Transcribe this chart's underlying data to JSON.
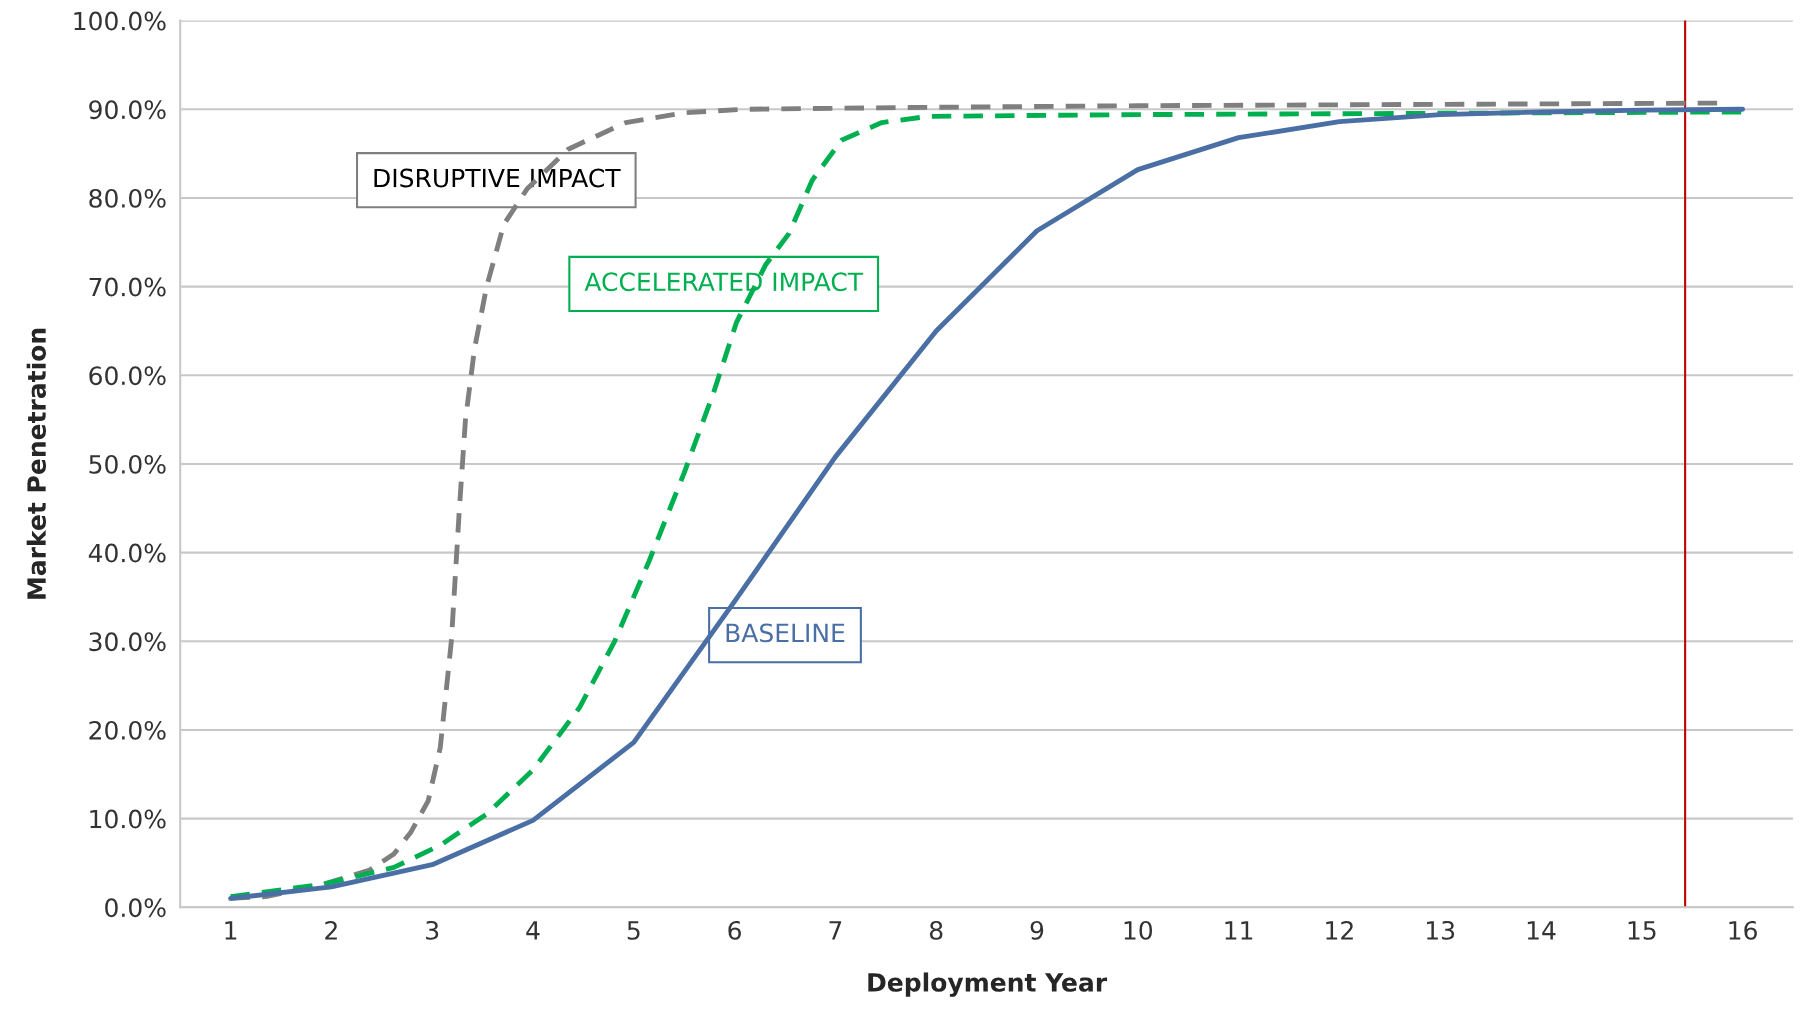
{
  "chart_data": {
    "type": "line",
    "xlabel": "Deployment Year",
    "ylabel": "Market Penetration",
    "xlim": [
      0.5,
      16.5
    ],
    "xticks": [
      1,
      2,
      3,
      4,
      5,
      6,
      7,
      8,
      9,
      10,
      11,
      12,
      13,
      14,
      15,
      16
    ],
    "ylim": [
      0,
      100
    ],
    "yticks": [
      {
        "value": 0,
        "label": "0.0%"
      },
      {
        "value": 10,
        "label": "10.0%"
      },
      {
        "value": 20,
        "label": "20.0%"
      },
      {
        "value": 30,
        "label": "30.0%"
      },
      {
        "value": 40,
        "label": "40.0%"
      },
      {
        "value": 50,
        "label": "50.0%"
      },
      {
        "value": 60,
        "label": "60.0%"
      },
      {
        "value": 70,
        "label": "70.0%"
      },
      {
        "value": 80,
        "label": "80.0%"
      },
      {
        "value": 90,
        "label": "90.0%"
      },
      {
        "value": 100,
        "label": "100.0%"
      }
    ],
    "grid": "y",
    "legend": false,
    "marker": "none",
    "series": [
      {
        "name": "DISRUPTIVE IMPACT",
        "color": "#7f7f7f",
        "line_style": "dashed",
        "x": [
          1.0,
          1.35,
          1.92,
          2.38,
          2.62,
          2.79,
          2.96,
          3.08,
          3.19,
          3.27,
          3.33,
          3.42,
          3.54,
          3.71,
          3.94,
          4.35,
          4.92,
          5.5,
          6.08,
          7.69,
          10.0,
          15.8
        ],
        "values": [
          1.0,
          1.2,
          2.6,
          4.2,
          6,
          8.5,
          12,
          18,
          30,
          45,
          55,
          63,
          70,
          77,
          81,
          85.5,
          88.5,
          89.6,
          90.0,
          90.2,
          90.4,
          90.7
        ]
      },
      {
        "name": "ACCELERATED IMPACT",
        "color": "#00b050",
        "line_style": "dashed",
        "x": [
          1.0,
          1.92,
          2.62,
          3.08,
          3.54,
          4.0,
          4.46,
          4.81,
          5.15,
          5.5,
          5.79,
          6.02,
          6.31,
          6.54,
          6.77,
          7.06,
          7.46,
          7.92,
          10.0,
          16.0
        ],
        "values": [
          1.2,
          2.6,
          4.5,
          7,
          10.5,
          15.5,
          22.5,
          30,
          39,
          49,
          58,
          66,
          72.5,
          76,
          82,
          86.5,
          88.5,
          89.2,
          89.4,
          89.7
        ]
      },
      {
        "name": "BASELINE",
        "color": "#4a6fa5",
        "line_style": "solid",
        "x": [
          1,
          2,
          3,
          4,
          5,
          6,
          7,
          8,
          9,
          10,
          11,
          12,
          13,
          14,
          15,
          16
        ],
        "values": [
          1.0,
          2.3,
          4.8,
          9.8,
          18.6,
          34.5,
          50.8,
          65,
          76.3,
          83.2,
          86.8,
          88.6,
          89.4,
          89.7,
          89.9,
          90.0
        ]
      }
    ],
    "ref_lines": [
      {
        "axis": "x",
        "value": 15.43,
        "color": "#c00000"
      }
    ]
  }
}
